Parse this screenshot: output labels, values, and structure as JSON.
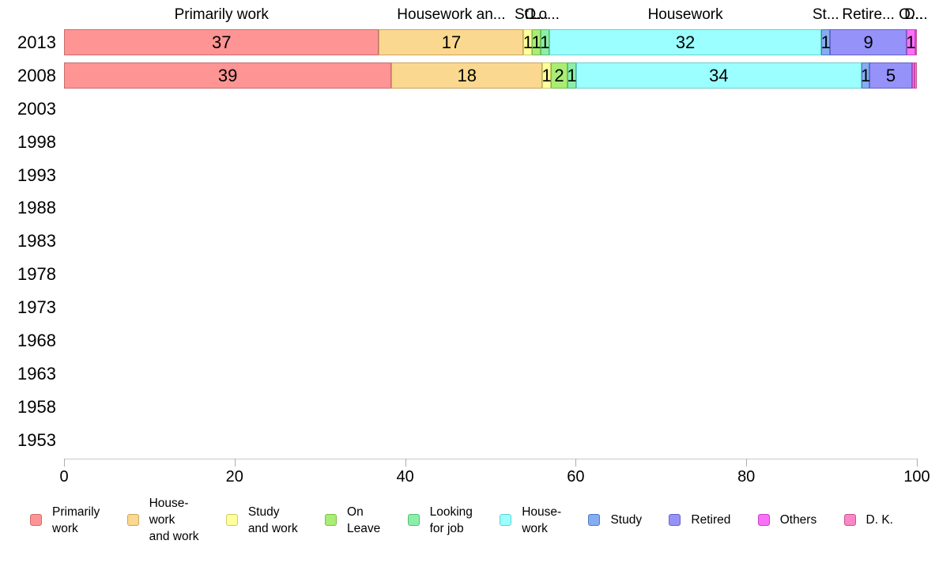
{
  "chart_data": {
    "type": "bar",
    "stacked": true,
    "orientation": "horizontal",
    "title": "",
    "xlabel": "",
    "ylabel": "",
    "xlim": [
      0,
      100
    ],
    "x_ticks": [
      "0",
      "20",
      "40",
      "60",
      "80",
      "100"
    ],
    "grid": false,
    "legend_position": "bottom",
    "categories": [
      "2013",
      "2008",
      "2003",
      "1998",
      "1993",
      "1988",
      "1983",
      "1978",
      "1973",
      "1968",
      "1963",
      "1958",
      "1953"
    ],
    "series": [
      {
        "name": "Primarily work",
        "fill": "#FF9494",
        "border": "#C76F6F",
        "header": "Primarily work",
        "legend": "Primarily\nwork"
      },
      {
        "name": "Housework and work",
        "fill": "#FBD88F",
        "border": "#C9A55F",
        "header": "Housework an...",
        "legend": "House-\nwork\nand work"
      },
      {
        "name": "Study and work",
        "fill": "#FFFF9B",
        "border": "#CBCB6C",
        "header": "St...",
        "legend": "Study\nand work"
      },
      {
        "name": "On Leave",
        "fill": "#A9ED74",
        "border": "#7CBC4B",
        "header": "O...",
        "legend": "On\nLeave"
      },
      {
        "name": "Looking for job",
        "fill": "#8BEFA9",
        "border": "#58BE78",
        "header": "Lo...",
        "legend": "Looking\nfor job"
      },
      {
        "name": "Housework",
        "fill": "#9BFFFF",
        "border": "#69CFCF",
        "header": "Housework",
        "legend": "House-\nwork"
      },
      {
        "name": "Study",
        "fill": "#84ADF2",
        "border": "#5378C4",
        "header": "St...",
        "legend": "Study"
      },
      {
        "name": "Retired",
        "fill": "#9592FA",
        "border": "#6562C9",
        "header": "Retire...",
        "legend": "Retired"
      },
      {
        "name": "Others",
        "fill": "#F970F9",
        "border": "#C443C4",
        "header": "O...",
        "legend": "Others"
      },
      {
        "name": "D. K.",
        "fill": "#FA87C6",
        "border": "#C95490",
        "header": "D...",
        "legend": "D. K."
      }
    ],
    "bars": {
      "2013": {
        "values": [
          37,
          17,
          1,
          1,
          1,
          32,
          1,
          9,
          1,
          0.2
        ],
        "labels": [
          "37",
          "17",
          "1",
          "1",
          "1",
          "32",
          "1",
          "9",
          "1",
          ""
        ]
      },
      "2008": {
        "values": [
          39,
          18,
          1,
          2,
          1,
          34,
          1,
          5,
          0.3,
          0.3
        ],
        "labels": [
          "39",
          "18",
          "1",
          "2",
          "1",
          "34",
          "1",
          "5",
          "",
          ""
        ]
      }
    }
  }
}
